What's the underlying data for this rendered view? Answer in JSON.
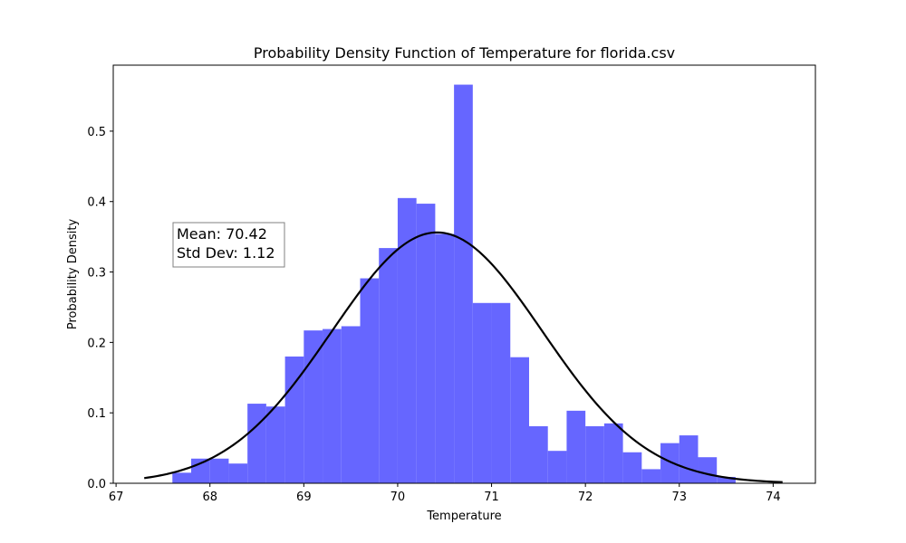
{
  "chart_data": {
    "type": "bar",
    "title": "Probability Density Function of Temperature for florida.csv",
    "xlabel": "Temperature",
    "ylabel": "Probability Density",
    "xlim": [
      66.97,
      74.45
    ],
    "ylim": [
      0,
      0.5937
    ],
    "xticks": [
      67,
      68,
      69,
      70,
      71,
      72,
      73,
      74
    ],
    "yticks": [
      0.0,
      0.1,
      0.2,
      0.3,
      0.4,
      0.5
    ],
    "grid": false,
    "bar_color": "#6666ff",
    "curve_color": "#000000",
    "bins": {
      "edges": [
        67.6,
        67.8,
        68.0,
        68.2,
        68.4,
        68.6,
        68.8,
        69.0,
        69.2,
        69.4,
        69.6,
        69.8,
        70.0,
        70.2,
        70.4,
        70.6,
        70.8,
        71.0,
        71.2,
        71.4,
        71.6,
        71.8,
        72.0,
        72.2,
        72.4,
        72.6,
        72.8,
        73.0,
        73.2,
        73.4,
        73.6,
        73.8
      ],
      "values": [
        0.015,
        0.035,
        0.035,
        0.028,
        0.113,
        0.109,
        0.18,
        0.217,
        0.219,
        0.223,
        0.291,
        0.334,
        0.405,
        0.397,
        0.354,
        0.566,
        0.256,
        0.256,
        0.179,
        0.081,
        0.046,
        0.103,
        0.081,
        0.085,
        0.044,
        0.02,
        0.057,
        0.068,
        0.037,
        0.009,
        0.0
      ]
    },
    "fit": {
      "type": "normal",
      "mean": 70.42,
      "std": 1.12,
      "x_range": [
        67.3,
        74.1
      ]
    },
    "annotation": {
      "lines": [
        "Mean: 70.42",
        "Std Dev: 1.12"
      ]
    }
  }
}
